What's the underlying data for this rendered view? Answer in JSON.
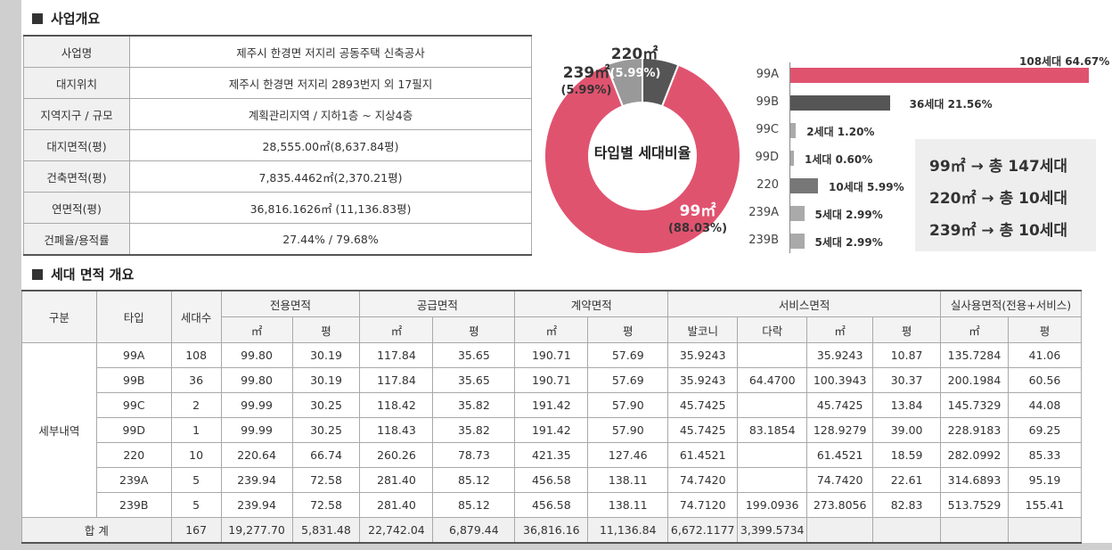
{
  "sections": {
    "overview_title": "사업개요",
    "unit_title": "세대 면적 개요"
  },
  "overview": [
    {
      "label": "사업명",
      "value": "제주시 한경면 저지리 공동주택 신축공사"
    },
    {
      "label": "대지위치",
      "value": "제주시 한경면 저지리 2893번지 외 17필지"
    },
    {
      "label": "지역지구 / 규모",
      "value": "계획관리지역 / 지하1층 ~ 지상4층"
    },
    {
      "label": "대지면적(평)",
      "value": "28,555.00㎡(8,637.84평)"
    },
    {
      "label": "건축면적(평)",
      "value": "7,835.4462㎡(2,370.21평)"
    },
    {
      "label": "연면적(평)",
      "value": "36,816.1626㎡ (11,136.83평)"
    },
    {
      "label": "건폐율/용적률",
      "value": "27.44% / 79.68%"
    }
  ],
  "donut": {
    "center_label": "타입별 세대비율",
    "slices": [
      {
        "name": "99㎡",
        "pct": "(88.03%)",
        "value": 88.03,
        "color": "#e0536f"
      },
      {
        "name": "239㎡",
        "pct": "(5.99%)",
        "value": 5.99,
        "color": "#999999"
      },
      {
        "name": "220㎡",
        "pct": "(5.99%)",
        "value": 5.99,
        "color": "#555555"
      }
    ]
  },
  "chart_data": {
    "type": "bar",
    "orientation": "horizontal",
    "categories": [
      "99A",
      "99B",
      "99C",
      "99D",
      "220",
      "239A",
      "239B"
    ],
    "values": [
      108,
      36,
      2,
      1,
      10,
      5,
      5
    ],
    "value_labels": [
      "108세대 64.67%",
      "36세대 21.56%",
      "2세대 1.20%",
      "1세대 0.60%",
      "10세대 5.99%",
      "5세대 2.99%",
      "5세대 2.99%"
    ],
    "colors": [
      "#e0536f",
      "#555555",
      "#aaaaaa",
      "#aaaaaa",
      "#777777",
      "#aaaaaa",
      "#aaaaaa"
    ],
    "xlim": [
      0,
      108
    ]
  },
  "summary": [
    "99㎡ → 총 147세대",
    "220㎡ → 총 10세대",
    "239㎡ → 총 10세대"
  ],
  "table": {
    "group_headers": {
      "category": "구분",
      "type": "타입",
      "units": "세대수",
      "exclusive": "전용면적",
      "supply": "공급면적",
      "contract": "계약면적",
      "service": "서비스면적",
      "actual": "실사용면적(전용+서비스)"
    },
    "sub_headers": [
      "㎡",
      "평",
      "㎡",
      "평",
      "㎡",
      "평",
      "발코니",
      "다락",
      "㎡",
      "평",
      "㎡",
      "평"
    ],
    "row_group_label": "세부내역",
    "rows": [
      [
        "99A",
        "108",
        "99.80",
        "30.19",
        "117.84",
        "35.65",
        "190.71",
        "57.69",
        "35.9243",
        "",
        "35.9243",
        "10.87",
        "135.7284",
        "41.06"
      ],
      [
        "99B",
        "36",
        "99.80",
        "30.19",
        "117.84",
        "35.65",
        "190.71",
        "57.69",
        "35.9243",
        "64.4700",
        "100.3943",
        "30.37",
        "200.1984",
        "60.56"
      ],
      [
        "99C",
        "2",
        "99.99",
        "30.25",
        "118.42",
        "35.82",
        "191.42",
        "57.90",
        "45.7425",
        "",
        "45.7425",
        "13.84",
        "145.7329",
        "44.08"
      ],
      [
        "99D",
        "1",
        "99.99",
        "30.25",
        "118.43",
        "35.82",
        "191.42",
        "57.90",
        "45.7425",
        "83.1854",
        "128.9279",
        "39.00",
        "228.9183",
        "69.25"
      ],
      [
        "220",
        "10",
        "220.64",
        "66.74",
        "260.26",
        "78.73",
        "421.35",
        "127.46",
        "61.4521",
        "",
        "61.4521",
        "18.59",
        "282.0992",
        "85.33"
      ],
      [
        "239A",
        "5",
        "239.94",
        "72.58",
        "281.40",
        "85.12",
        "456.58",
        "138.11",
        "74.7420",
        "",
        "74.7420",
        "22.61",
        "314.6893",
        "95.19"
      ],
      [
        "239B",
        "5",
        "239.94",
        "72.58",
        "281.40",
        "85.12",
        "456.58",
        "138.11",
        "74.7120",
        "199.0936",
        "273.8056",
        "82.83",
        "513.7529",
        "155.41"
      ]
    ],
    "total": [
      "합 계",
      "167",
      "19,277.70",
      "5,831.48",
      "22,742.04",
      "6,879.44",
      "36,816.16",
      "11,136.84",
      "6,672.1177",
      "3,399.5734",
      "",
      "",
      "",
      ""
    ]
  }
}
